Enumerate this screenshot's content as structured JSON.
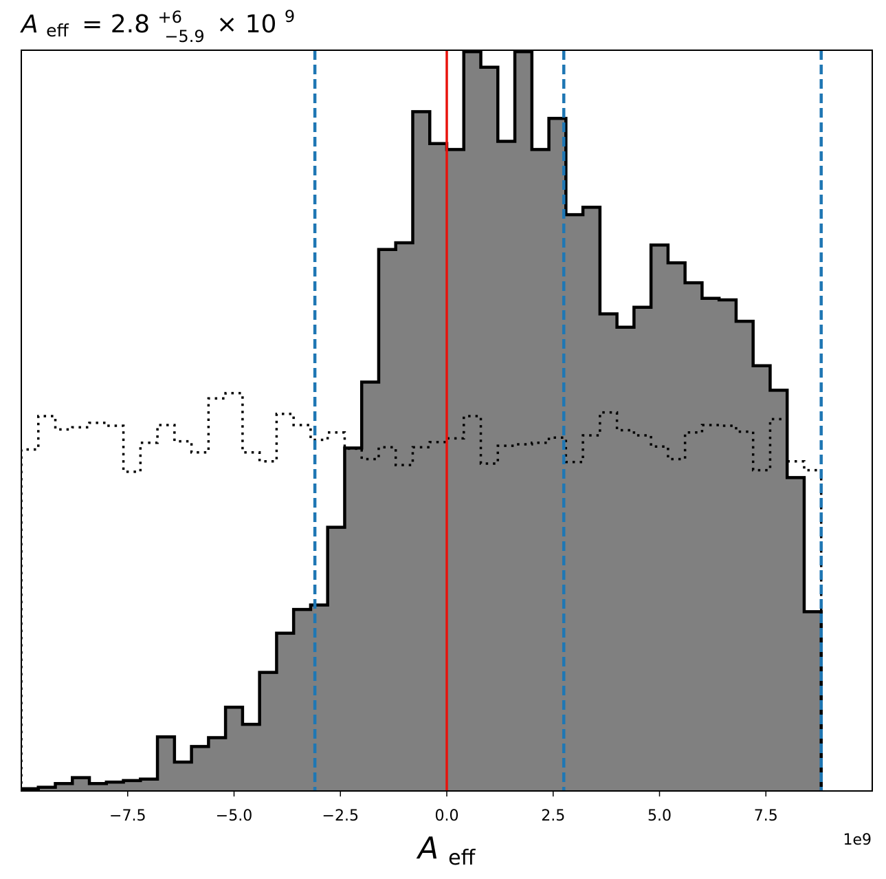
{
  "chart_data": {
    "type": "histogram",
    "title": {
      "symbol": "A",
      "symbol_sub": "eff",
      "equals": "= 2.8",
      "upper_err": "+6",
      "lower_err": "−5.9",
      "times": "× 10",
      "exponent": "9"
    },
    "xlabel": {
      "symbol": "A",
      "sub": "eff"
    },
    "offset_label": "1e9",
    "xlim": [
      -10.0,
      10.0
    ],
    "ylim": [
      0,
      1
    ],
    "xticks": [
      -7.5,
      -5.0,
      -2.5,
      0.0,
      2.5,
      5.0,
      7.5
    ],
    "xtick_labels": [
      "−7.5",
      "−5.0",
      "−2.5",
      "0.0",
      "2.5",
      "5.0",
      "7.5"
    ],
    "y_ticks_shown": false,
    "bin_edges_start": -10.0,
    "bin_width": 0.4,
    "series": [
      {
        "style": "filled-step",
        "fill": "#808080",
        "stroke": "#000000",
        "values": [
          0.003,
          0.005,
          0.01,
          0.018,
          0.01,
          0.012,
          0.014,
          0.016,
          0.073,
          0.039,
          0.06,
          0.072,
          0.113,
          0.09,
          0.16,
          0.213,
          0.245,
          0.251,
          0.356,
          0.463,
          0.552,
          0.731,
          0.74,
          0.917,
          0.874,
          0.866,
          0.998,
          0.977,
          0.877,
          0.998,
          0.866,
          0.908,
          0.778,
          0.788,
          0.644,
          0.626,
          0.653,
          0.737,
          0.713,
          0.686,
          0.665,
          0.663,
          0.634,
          0.574,
          0.541,
          0.423,
          0.242
        ]
      },
      {
        "style": "dotted-step",
        "stroke": "#000000",
        "values": [
          0.461,
          0.506,
          0.488,
          0.491,
          0.497,
          0.493,
          0.431,
          0.47,
          0.494,
          0.472,
          0.457,
          0.53,
          0.537,
          0.457,
          0.445,
          0.509,
          0.494,
          0.474,
          0.484,
          0.462,
          0.448,
          0.464,
          0.44,
          0.464,
          0.471,
          0.476,
          0.506,
          0.442,
          0.466,
          0.468,
          0.47,
          0.477,
          0.444,
          0.48,
          0.511,
          0.487,
          0.48,
          0.465,
          0.448,
          0.484,
          0.494,
          0.493,
          0.485,
          0.433,
          0.502,
          0.445,
          0.433
        ]
      }
    ],
    "vlines": [
      {
        "x": 0.0,
        "color": "#e8120c",
        "style": "solid"
      },
      {
        "x": -3.1,
        "color": "#1f77b4",
        "style": "dashed"
      },
      {
        "x": 2.75,
        "color": "#1f77b4",
        "style": "dashed"
      },
      {
        "x": 8.8,
        "color": "#1f77b4",
        "style": "dashed"
      }
    ],
    "grid": false,
    "legend": "none"
  }
}
